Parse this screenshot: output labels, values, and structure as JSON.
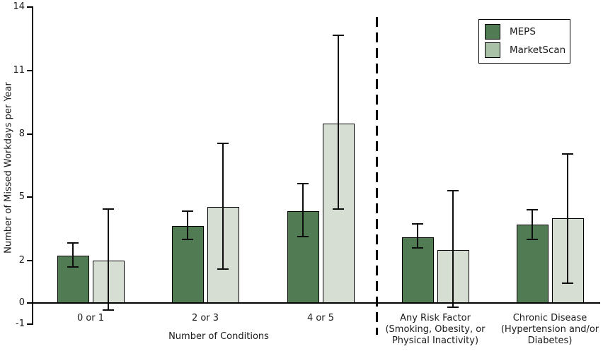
{
  "figure": {
    "background": "#ffffff",
    "text_color": "#1a1a1a",
    "axis_color": "#000000"
  },
  "chart_data": {
    "type": "bar",
    "title": "",
    "ylabel": "Number of Missed Workdays per Year",
    "xlabel": "Number of Conditions",
    "ylim": [
      -1,
      14
    ],
    "yticks": [
      -1,
      0,
      2,
      5,
      8,
      11,
      14
    ],
    "grid": false,
    "error_bars": true,
    "categories": [
      "0 or 1",
      "2 or 3",
      "4 or 5",
      "Any Risk Factor (Smoking, Obesity, or Physical Inactivity)",
      "Chronic Disease (Hypertension and/or Diabetes)"
    ],
    "category_lines": [
      [
        "0 or 1"
      ],
      [
        "2 or 3"
      ],
      [
        "4 or 5"
      ],
      [
        "Any Risk Factor",
        "(Smoking, Obesity, or",
        "Physical Inactivity)"
      ],
      [
        "Chronic Disease",
        "(Hypertension and/or",
        "Diabetes)"
      ]
    ],
    "separator": {
      "style": "dashed-vertical-line",
      "after_category": "4 or 5"
    },
    "series": [
      {
        "name": "MEPS",
        "color": "#507b53",
        "values": [
          2.25,
          3.65,
          4.35,
          3.1,
          3.7
        ],
        "error_low": [
          1.7,
          3.0,
          3.15,
          2.6,
          3.0
        ],
        "error_high": [
          2.85,
          4.35,
          5.65,
          3.75,
          4.4
        ]
      },
      {
        "name": "MarketScan",
        "color": "#d6ded4",
        "values": [
          2.0,
          4.55,
          8.5,
          2.5,
          4.0
        ],
        "error_low": [
          -0.35,
          1.6,
          4.45,
          -0.2,
          0.95
        ],
        "error_high": [
          4.45,
          7.55,
          12.65,
          5.3,
          7.05
        ]
      }
    ],
    "legend": {
      "position": "top-right",
      "entries": [
        {
          "label": "MEPS",
          "swatch_color": "#507b53"
        },
        {
          "label": "MarketScan",
          "swatch_color": "#a9c2a7"
        }
      ]
    }
  }
}
